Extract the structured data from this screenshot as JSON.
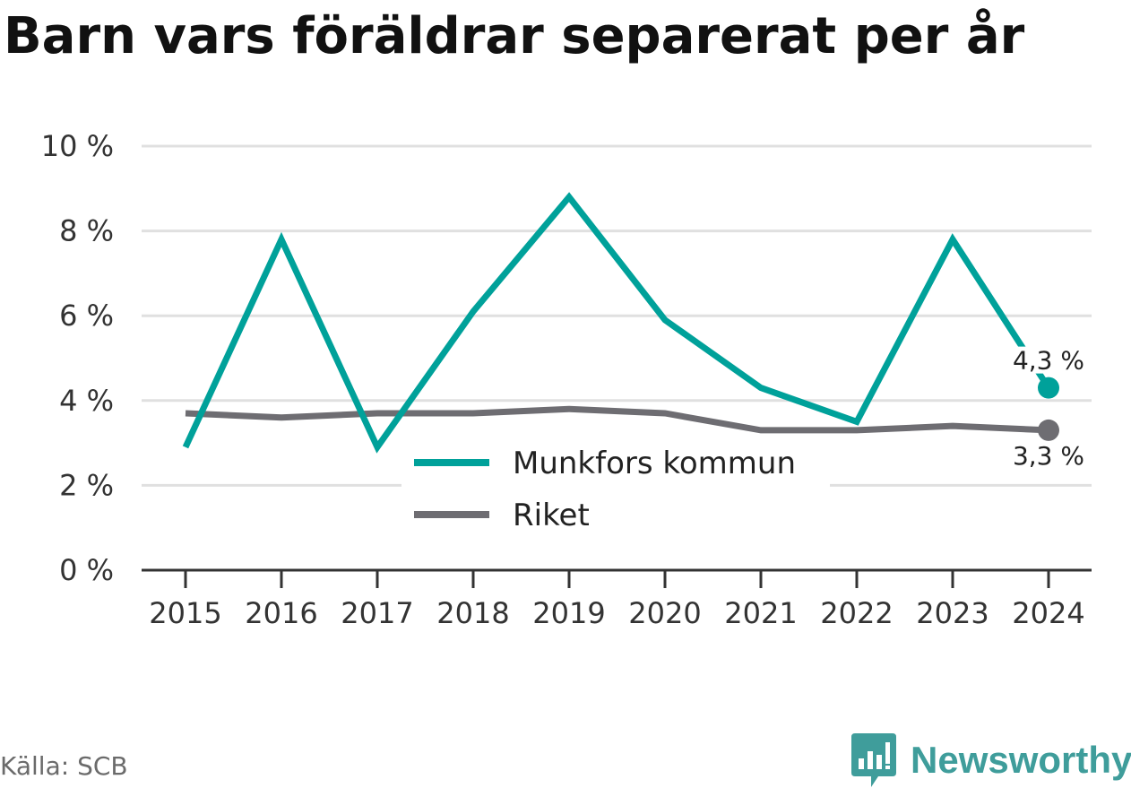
{
  "title": "Barn vars föräldrar separerat per år",
  "source": "Källa: SCB",
  "brand": {
    "name": "Newsworthy",
    "logo_icon": "bar-chart-flag-icon",
    "color": "#3f9d9b"
  },
  "colors": {
    "munkfors": "#00a19a",
    "riket": "#6e6d72",
    "grid": "#e0e0e0",
    "axis": "#333333"
  },
  "chart_data": {
    "type": "line",
    "title": "Barn vars föräldrar separerat per år",
    "x": [
      "2015",
      "2016",
      "2017",
      "2018",
      "2019",
      "2020",
      "2021",
      "2022",
      "2023",
      "2024"
    ],
    "ylim": [
      0,
      10
    ],
    "yticks": [
      0,
      2,
      4,
      6,
      8,
      10
    ],
    "ytick_labels": [
      "0 %",
      "2 %",
      "4 %",
      "6 %",
      "8 %",
      "10 %"
    ],
    "grid": true,
    "legend_position": "center",
    "series": [
      {
        "name": "Munkfors kommun",
        "values": [
          2.9,
          7.8,
          2.9,
          6.1,
          8.8,
          5.9,
          4.3,
          3.5,
          7.8,
          4.3
        ],
        "end_label": "4,3 %"
      },
      {
        "name": "Riket",
        "values": [
          3.7,
          3.6,
          3.7,
          3.7,
          3.8,
          3.7,
          3.3,
          3.3,
          3.4,
          3.3
        ],
        "end_label": "3,3 %"
      }
    ]
  }
}
